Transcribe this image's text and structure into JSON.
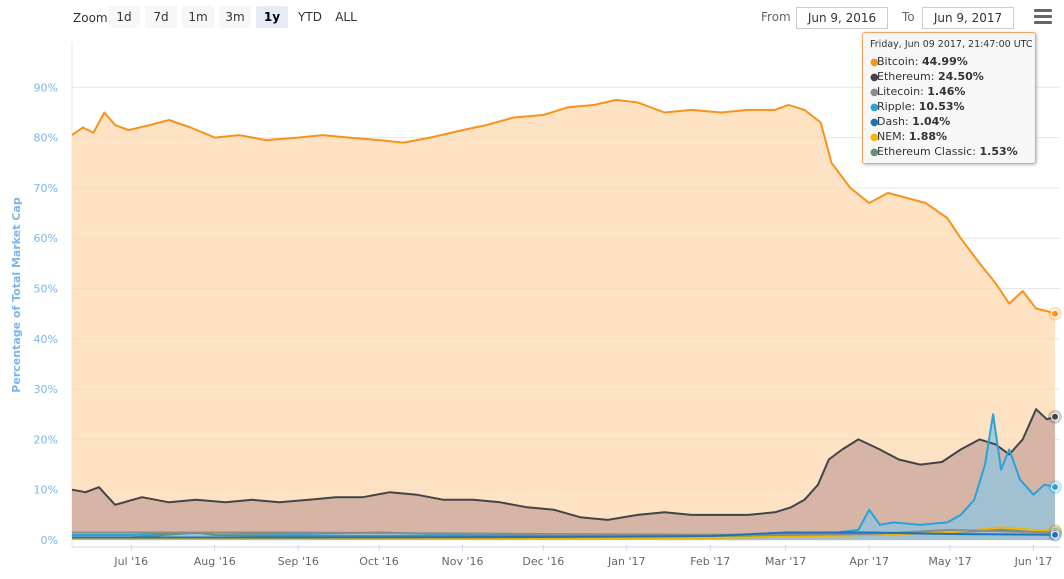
{
  "toolbar": {
    "zoom_label": "Zoom",
    "zoom_buttons": [
      "1d",
      "7d",
      "1m",
      "3m",
      "1y",
      "YTD",
      "ALL"
    ],
    "active_zoom": "1y",
    "from_label": "From",
    "from_value": "Jun 9, 2016",
    "to_label": "To",
    "to_value": "Jun 9, 2017",
    "menu_icon": "hamburger-menu-icon"
  },
  "tooltip": {
    "date": "Friday, Jun 09 2017, 21:47:00 UTC",
    "rows": [
      {
        "name": "Bitcoin",
        "value": "44.99%",
        "color": "#f7931a"
      },
      {
        "name": "Ethereum",
        "value": "24.50%",
        "color": "#434348"
      },
      {
        "name": "Litecoin",
        "value": "1.46%",
        "color": "#8c8c8c"
      },
      {
        "name": "Ripple",
        "value": "10.53%",
        "color": "#2aa2d6"
      },
      {
        "name": "Dash",
        "value": "1.04%",
        "color": "#1c75bc"
      },
      {
        "name": "NEM",
        "value": "1.88%",
        "color": "#f4b400"
      },
      {
        "name": "Ethereum Classic",
        "value": "1.53%",
        "color": "#669073"
      }
    ]
  },
  "chart_data": {
    "type": "area",
    "title": "",
    "ylabel": "Percentage of Total Market Cap",
    "xlabel": "",
    "ylim": [
      0,
      100
    ],
    "yticks": [
      "0%",
      "10%",
      "20%",
      "30%",
      "40%",
      "50%",
      "60%",
      "70%",
      "80%",
      "90%"
    ],
    "xlim": [
      "2016-06-09",
      "2017-06-09"
    ],
    "xticks": [
      {
        "label": "Jul '16",
        "date": "2016-07-01"
      },
      {
        "label": "Aug '16",
        "date": "2016-08-01"
      },
      {
        "label": "Sep '16",
        "date": "2016-09-01"
      },
      {
        "label": "Oct '16",
        "date": "2016-10-01"
      },
      {
        "label": "Nov '16",
        "date": "2016-11-01"
      },
      {
        "label": "Dec '16",
        "date": "2016-12-01"
      },
      {
        "label": "Jan '17",
        "date": "2017-01-01"
      },
      {
        "label": "Feb '17",
        "date": "2017-02-01"
      },
      {
        "label": "Mar '17",
        "date": "2017-03-01"
      },
      {
        "label": "Apr '17",
        "date": "2017-04-01"
      },
      {
        "label": "May '17",
        "date": "2017-05-01"
      },
      {
        "label": "Jun '17",
        "date": "2017-06-01"
      }
    ],
    "grid": true,
    "legend": "none",
    "series": [
      {
        "name": "Bitcoin",
        "color": "#f7931a",
        "fill": "#fcd9b0",
        "x": [
          "2016-06-09",
          "2016-06-13",
          "2016-06-17",
          "2016-06-21",
          "2016-06-25",
          "2016-06-30",
          "2016-07-08",
          "2016-07-15",
          "2016-07-23",
          "2016-08-01",
          "2016-08-10",
          "2016-08-20",
          "2016-09-01",
          "2016-09-10",
          "2016-09-20",
          "2016-10-01",
          "2016-10-10",
          "2016-10-20",
          "2016-11-01",
          "2016-11-10",
          "2016-11-20",
          "2016-12-01",
          "2016-12-10",
          "2016-12-20",
          "2016-12-28",
          "2017-01-05",
          "2017-01-15",
          "2017-01-25",
          "2017-02-05",
          "2017-02-15",
          "2017-02-25",
          "2017-03-02",
          "2017-03-08",
          "2017-03-14",
          "2017-03-18",
          "2017-03-25",
          "2017-04-01",
          "2017-04-08",
          "2017-04-15",
          "2017-04-22",
          "2017-04-30",
          "2017-05-05",
          "2017-05-12",
          "2017-05-18",
          "2017-05-23",
          "2017-05-28",
          "2017-06-02",
          "2017-06-06",
          "2017-06-09"
        ],
        "y": [
          80.5,
          82,
          81,
          85,
          82.5,
          81.5,
          82.5,
          83.5,
          82,
          80,
          80.5,
          79.5,
          80,
          80.5,
          80,
          79.5,
          79,
          80,
          81.5,
          82.5,
          84,
          84.5,
          86,
          86.5,
          87.5,
          87,
          85,
          85.5,
          85,
          85.5,
          85.5,
          86.5,
          85.5,
          83,
          75,
          70,
          67,
          69,
          68,
          67,
          64,
          60,
          55,
          51,
          47,
          49.5,
          46,
          45.5,
          44.99
        ]
      },
      {
        "name": "Ethereum",
        "color": "#434348",
        "fill": "#c8a59d",
        "x": [
          "2016-06-09",
          "2016-06-14",
          "2016-06-19",
          "2016-06-25",
          "2016-07-05",
          "2016-07-15",
          "2016-07-25",
          "2016-08-05",
          "2016-08-15",
          "2016-08-25",
          "2016-09-05",
          "2016-09-15",
          "2016-09-25",
          "2016-10-05",
          "2016-10-15",
          "2016-10-25",
          "2016-11-05",
          "2016-11-15",
          "2016-11-25",
          "2016-12-05",
          "2016-12-15",
          "2016-12-25",
          "2017-01-05",
          "2017-01-15",
          "2017-01-25",
          "2017-02-05",
          "2017-02-15",
          "2017-02-25",
          "2017-03-03",
          "2017-03-08",
          "2017-03-13",
          "2017-03-17",
          "2017-03-22",
          "2017-03-28",
          "2017-04-05",
          "2017-04-12",
          "2017-04-20",
          "2017-04-28",
          "2017-05-05",
          "2017-05-12",
          "2017-05-18",
          "2017-05-23",
          "2017-05-28",
          "2017-06-02",
          "2017-06-06",
          "2017-06-09"
        ],
        "y": [
          10,
          9.5,
          10.5,
          7,
          8.5,
          7.5,
          8,
          7.5,
          8,
          7.5,
          8,
          8.5,
          8.5,
          9.5,
          9,
          8,
          8,
          7.5,
          6.5,
          6,
          4.5,
          4,
          5,
          5.5,
          5,
          5,
          5,
          5.5,
          6.5,
          8,
          11,
          16,
          18,
          20,
          18,
          16,
          15,
          15.5,
          18,
          20,
          19,
          17,
          20,
          26,
          24,
          24.5
        ]
      },
      {
        "name": "Ripple",
        "color": "#2aa2d6",
        "fill": "#8fc6e0",
        "x": [
          "2016-06-09",
          "2016-07-01",
          "2016-08-01",
          "2016-09-01",
          "2016-10-01",
          "2016-11-01",
          "2016-12-01",
          "2017-01-01",
          "2017-02-01",
          "2017-03-01",
          "2017-03-20",
          "2017-03-28",
          "2017-04-01",
          "2017-04-05",
          "2017-04-10",
          "2017-04-20",
          "2017-04-30",
          "2017-05-05",
          "2017-05-10",
          "2017-05-14",
          "2017-05-17",
          "2017-05-20",
          "2017-05-23",
          "2017-05-27",
          "2017-06-01",
          "2017-06-05",
          "2017-06-09"
        ],
        "y": [
          1,
          1,
          1.5,
          1.2,
          1.5,
          1,
          1,
          0.8,
          0.8,
          1.2,
          1.5,
          2,
          6,
          3,
          3.5,
          3,
          3.5,
          5,
          8,
          15,
          25,
          14,
          18,
          12,
          9,
          11,
          10.53
        ]
      },
      {
        "name": "Ethereum Classic",
        "color": "#669073",
        "fill": "none",
        "x": [
          "2016-06-09",
          "2016-07-01",
          "2016-07-25",
          "2016-08-01",
          "2016-09-01",
          "2016-10-01",
          "2016-11-01",
          "2016-12-01",
          "2017-01-01",
          "2017-02-01",
          "2017-03-01",
          "2017-04-01",
          "2017-05-01",
          "2017-05-20",
          "2017-06-01",
          "2017-06-09"
        ],
        "y": [
          0.5,
          0.5,
          1.5,
          1,
          0.8,
          0.8,
          0.8,
          0.8,
          0.5,
          0.5,
          0.8,
          1,
          1.5,
          2,
          1.6,
          1.53
        ]
      },
      {
        "name": "NEM",
        "color": "#f4b400",
        "fill": "none",
        "x": [
          "2016-06-09",
          "2016-08-01",
          "2016-11-01",
          "2017-02-01",
          "2017-03-15",
          "2017-04-01",
          "2017-05-01",
          "2017-05-20",
          "2017-06-01",
          "2017-06-09"
        ],
        "y": [
          0.3,
          0.3,
          0.3,
          0.4,
          0.8,
          1,
          1.5,
          2.5,
          2,
          1.88
        ]
      },
      {
        "name": "Litecoin",
        "color": "#8c8c8c",
        "fill": "none",
        "x": [
          "2016-06-09",
          "2016-09-01",
          "2016-12-01",
          "2017-03-01",
          "2017-04-01",
          "2017-05-01",
          "2017-06-09"
        ],
        "y": [
          1.5,
          1.5,
          1.2,
          1,
          1.2,
          2,
          1.46
        ]
      },
      {
        "name": "Dash",
        "color": "#1c75bc",
        "fill": "none",
        "x": [
          "2016-06-09",
          "2016-09-01",
          "2016-12-01",
          "2017-02-01",
          "2017-03-01",
          "2017-04-01",
          "2017-05-01",
          "2017-06-09"
        ],
        "y": [
          0.5,
          0.5,
          0.6,
          0.8,
          1.5,
          1.5,
          1.2,
          1.04
        ]
      }
    ]
  }
}
